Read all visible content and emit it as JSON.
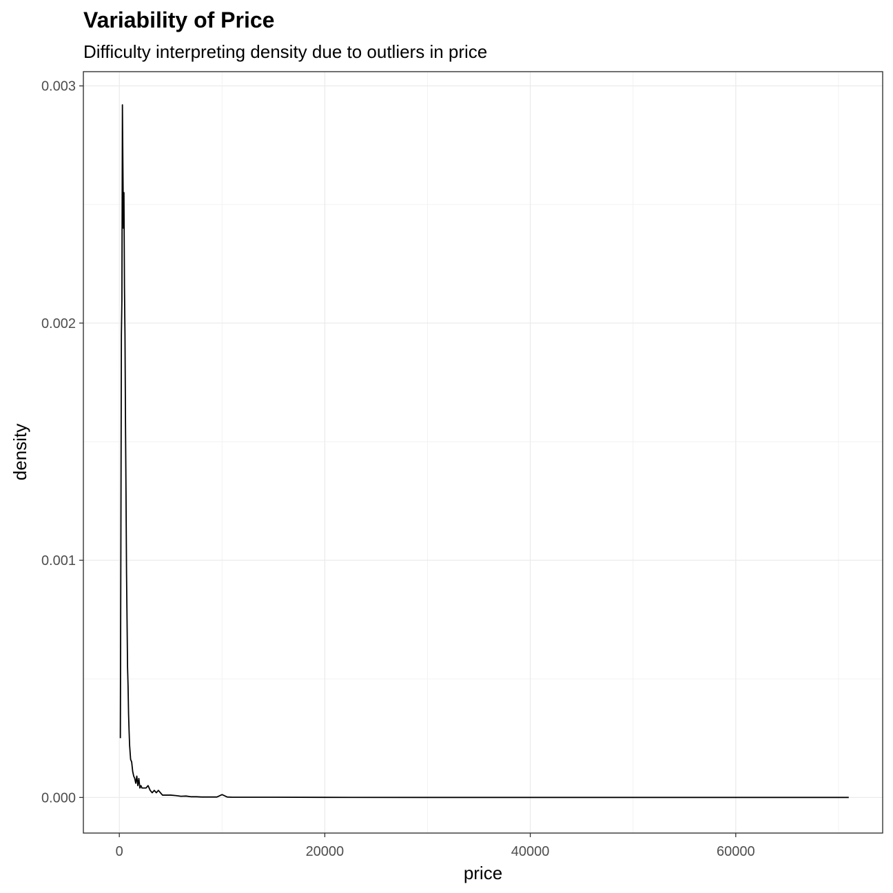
{
  "chart_data": {
    "type": "line",
    "title": "Variability of Price",
    "subtitle": "Difficulty interpreting density due to outliers in price",
    "xlabel": "price",
    "ylabel": "density",
    "xlim": [
      -3500,
      74300
    ],
    "ylim": [
      -0.00015,
      0.00306
    ],
    "x_ticks": [
      0,
      20000,
      40000,
      60000
    ],
    "x_tick_labels": [
      "0",
      "20000",
      "40000",
      "60000"
    ],
    "y_ticks": [
      0,
      0.001,
      0.002,
      0.003
    ],
    "y_tick_labels": [
      "0.000",
      "0.001",
      "0.002",
      "0.003"
    ],
    "grid": true,
    "line_color": "#000000",
    "series": [
      {
        "x": [
          100,
          150,
          200,
          250,
          300,
          350,
          400,
          450,
          500,
          550,
          600,
          650,
          700,
          750,
          800,
          850,
          900,
          950,
          1000,
          1100,
          1200,
          1300,
          1400,
          1500,
          1600,
          1700,
          1800,
          1900,
          2000,
          2100,
          2200,
          2400,
          2600,
          2800,
          3000,
          3200,
          3400,
          3600,
          3800,
          4000,
          4200,
          4400,
          4600,
          4800,
          5000,
          5500,
          6000,
          6500,
          7000,
          7500,
          8000,
          8500,
          9000,
          9500,
          10000,
          10500,
          11000,
          15000,
          20000,
          30000,
          40000,
          50000,
          60000,
          71000
        ],
        "y": [
          0.00025,
          0.00105,
          0.00195,
          0.0021,
          0.00292,
          0.00265,
          0.0024,
          0.00255,
          0.00215,
          0.00195,
          0.00158,
          0.00128,
          0.00095,
          0.00075,
          0.00055,
          0.00047,
          0.00035,
          0.00028,
          0.00022,
          0.00016,
          0.00015,
          0.00011,
          9e-05,
          8e-05,
          6e-05,
          9e-05,
          5e-05,
          8e-05,
          4e-05,
          5e-05,
          4e-05,
          4e-05,
          4e-05,
          5e-05,
          3e-05,
          2e-05,
          3e-05,
          2e-05,
          3e-05,
          2e-05,
          1e-05,
          1e-05,
          1e-05,
          1e-05,
          1e-05,
          8e-06,
          5e-06,
          6e-06,
          3e-06,
          3e-06,
          2e-06,
          2e-06,
          2e-06,
          2e-06,
          1.2e-05,
          2e-06,
          1e-06,
          1e-06,
          5e-07,
          2e-07,
          1e-07,
          1e-07,
          1e-07,
          1e-07
        ]
      }
    ]
  }
}
